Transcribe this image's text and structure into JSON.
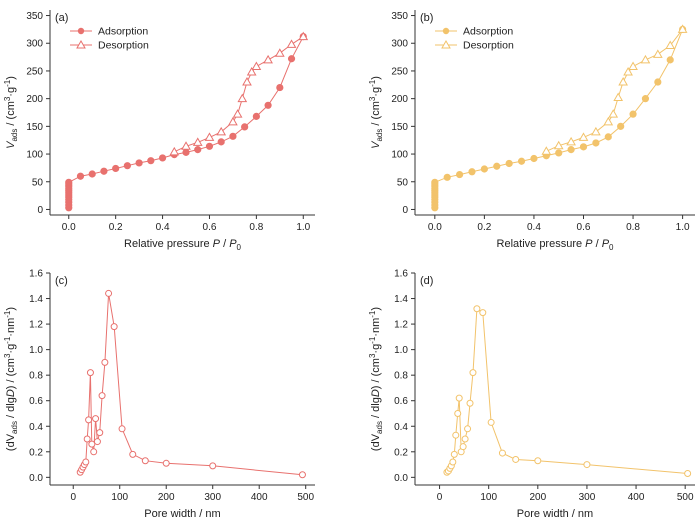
{
  "chart_data": [
    {
      "type": "line",
      "panel": "(a)",
      "color": "#E8716E",
      "xlabel_main": "Relative pressure ",
      "xlabel_italic": "P",
      "xlabel_mid": " / ",
      "xlabel_italic2": "P",
      "xlabel_sub": "0",
      "ylabel_pre": "V",
      "ylabel_sub": "ads",
      "ylabel_mid": " / (cm",
      "ylabel_sup1": "3",
      "ylabel_mid2": "·g",
      "ylabel_sup2": "-1",
      "ylabel_end": ")",
      "xlim": [
        -0.08,
        1.05
      ],
      "ylim": [
        -10,
        360
      ],
      "xticks": [
        "0.0",
        "0.2",
        "0.4",
        "0.6",
        "0.8",
        "1.0"
      ],
      "yticks": [
        "0",
        "50",
        "100",
        "150",
        "200",
        "250",
        "300",
        "350"
      ],
      "legend": "top-left",
      "series": [
        {
          "name": "Adsorption",
          "marker": "filled-circle",
          "x": [
            0.0,
            0.0,
            0.0,
            0.0,
            0.0,
            0.0,
            0.0,
            0.0,
            0.0,
            0.0,
            0.0,
            0.0,
            0.05,
            0.1,
            0.15,
            0.2,
            0.25,
            0.3,
            0.35,
            0.4,
            0.45,
            0.5,
            0.55,
            0.6,
            0.65,
            0.7,
            0.75,
            0.8,
            0.85,
            0.9,
            0.95,
            1.0
          ],
          "y": [
            3,
            8,
            13,
            18,
            22,
            26,
            30,
            34,
            38,
            42,
            46,
            49,
            60,
            64,
            69,
            74,
            79,
            84,
            88,
            93,
            99,
            103,
            108,
            114,
            122,
            132,
            149,
            168,
            188,
            220,
            272,
            312
          ]
        },
        {
          "name": "Desorption",
          "marker": "open-triangle",
          "x": [
            1.0,
            0.95,
            0.9,
            0.85,
            0.8,
            0.78,
            0.76,
            0.74,
            0.72,
            0.7,
            0.65,
            0.6,
            0.55,
            0.5,
            0.45
          ],
          "y": [
            312,
            298,
            282,
            270,
            258,
            248,
            230,
            200,
            172,
            158,
            140,
            130,
            121,
            114,
            104
          ]
        }
      ]
    },
    {
      "type": "line",
      "panel": "(b)",
      "color": "#F2C36B",
      "xlabel_main": "Relative pressure ",
      "xlabel_italic": "P",
      "xlabel_mid": " / ",
      "xlabel_italic2": "P",
      "xlabel_sub": "0",
      "ylabel_pre": "V",
      "ylabel_sub": "ads",
      "ylabel_mid": " / (cm",
      "ylabel_sup1": "3",
      "ylabel_mid2": "·g",
      "ylabel_sup2": "-1",
      "ylabel_end": ")",
      "xlim": [
        -0.08,
        1.05
      ],
      "ylim": [
        -10,
        360
      ],
      "xticks": [
        "0.0",
        "0.2",
        "0.4",
        "0.6",
        "0.8",
        "1.0"
      ],
      "yticks": [
        "0",
        "50",
        "100",
        "150",
        "200",
        "250",
        "300",
        "350"
      ],
      "legend": "top-left",
      "series": [
        {
          "name": "Adsorption",
          "marker": "filled-circle",
          "x": [
            0.0,
            0.0,
            0.0,
            0.0,
            0.0,
            0.0,
            0.0,
            0.0,
            0.0,
            0.0,
            0.0,
            0.0,
            0.05,
            0.1,
            0.15,
            0.2,
            0.25,
            0.3,
            0.35,
            0.4,
            0.45,
            0.5,
            0.55,
            0.6,
            0.65,
            0.7,
            0.75,
            0.8,
            0.85,
            0.9,
            0.95,
            1.0
          ],
          "y": [
            3,
            8,
            13,
            18,
            22,
            26,
            30,
            34,
            38,
            42,
            46,
            49,
            58,
            63,
            68,
            73,
            78,
            83,
            87,
            92,
            97,
            102,
            108,
            113,
            120,
            131,
            150,
            172,
            200,
            230,
            270,
            325
          ]
        },
        {
          "name": "Desorption",
          "marker": "open-triangle",
          "x": [
            1.0,
            0.95,
            0.9,
            0.85,
            0.8,
            0.78,
            0.76,
            0.74,
            0.72,
            0.7,
            0.65,
            0.6,
            0.55,
            0.5,
            0.45
          ],
          "y": [
            325,
            296,
            280,
            270,
            258,
            248,
            230,
            202,
            172,
            158,
            140,
            130,
            122,
            115,
            105
          ]
        }
      ]
    },
    {
      "type": "line",
      "panel": "(c)",
      "color": "#E8716E",
      "xlabel_main": "Pore width / nm",
      "ylabel_pre": "(dV",
      "ylabel_sub": "ads",
      "ylabel_mid": " / dlg",
      "ylabel_italic": "D",
      "ylabel_mid2": ") / (cm",
      "ylabel_sup1": "3",
      "ylabel_mid3": "·g",
      "ylabel_sup2": "-1",
      "ylabel_mid4": "·nm",
      "ylabel_sup3": "-1",
      "ylabel_end": ")",
      "xlim": [
        -50,
        520
      ],
      "ylim": [
        -0.06,
        1.6
      ],
      "xticks": [
        "0",
        "100",
        "200",
        "300",
        "400",
        "500"
      ],
      "yticks": [
        "0.0",
        "0.2",
        "0.4",
        "0.6",
        "0.8",
        "1.0",
        "1.2",
        "1.4",
        "1.6"
      ],
      "series": [
        {
          "name": "",
          "marker": "open-circle",
          "x": [
            15,
            18,
            21,
            24,
            27,
            30,
            33,
            37,
            40,
            44,
            48,
            52,
            57,
            62,
            68,
            76,
            88,
            105,
            128,
            155,
            200,
            300,
            493
          ],
          "y": [
            0.04,
            0.06,
            0.08,
            0.1,
            0.12,
            0.3,
            0.45,
            0.82,
            0.26,
            0.2,
            0.46,
            0.28,
            0.35,
            0.64,
            0.9,
            1.44,
            1.18,
            0.38,
            0.18,
            0.13,
            0.11,
            0.09,
            0.02
          ]
        }
      ]
    },
    {
      "type": "line",
      "panel": "(d)",
      "color": "#F2C36B",
      "xlabel_main": "Pore width / nm",
      "ylabel_pre": "(dV",
      "ylabel_sub": "ads",
      "ylabel_mid": " / dlg",
      "ylabel_italic": "D",
      "ylabel_mid2": ") / (cm",
      "ylabel_sup1": "3",
      "ylabel_mid3": "·g",
      "ylabel_sup2": "-1",
      "ylabel_mid4": "·nm",
      "ylabel_sup3": "-1",
      "ylabel_end": ")",
      "xlim": [
        -50,
        520
      ],
      "ylim": [
        -0.06,
        1.6
      ],
      "xticks": [
        "0",
        "100",
        "200",
        "300",
        "400",
        "500"
      ],
      "yticks": [
        "0.0",
        "0.2",
        "0.4",
        "0.6",
        "0.8",
        "1.0",
        "1.2",
        "1.4",
        "1.6"
      ],
      "series": [
        {
          "name": "",
          "marker": "open-circle",
          "x": [
            15,
            18,
            21,
            24,
            27,
            30,
            33,
            37,
            40,
            44,
            48,
            52,
            57,
            62,
            68,
            76,
            88,
            105,
            128,
            155,
            200,
            300,
            505
          ],
          "y": [
            0.04,
            0.05,
            0.07,
            0.09,
            0.12,
            0.18,
            0.33,
            0.5,
            0.62,
            0.2,
            0.24,
            0.3,
            0.38,
            0.58,
            0.82,
            1.32,
            1.29,
            0.43,
            0.19,
            0.14,
            0.13,
            0.1,
            0.03
          ]
        }
      ]
    }
  ]
}
